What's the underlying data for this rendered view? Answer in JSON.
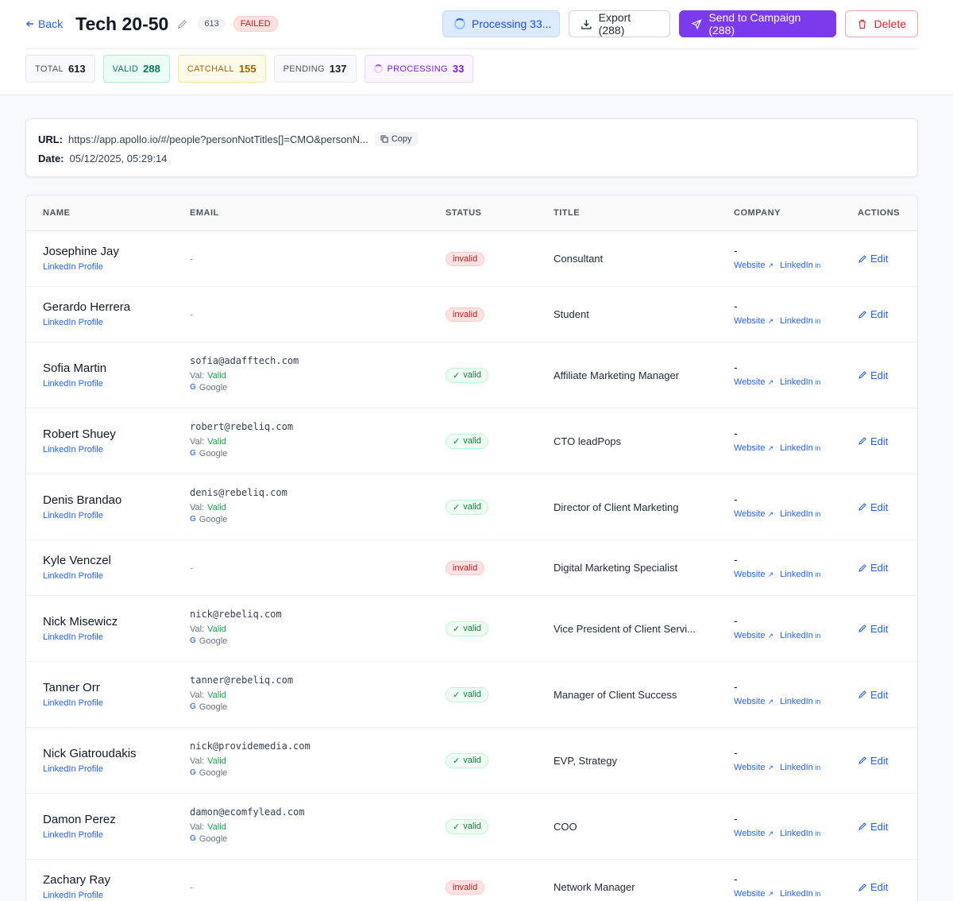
{
  "header": {
    "back_label": "Back",
    "title": "Tech 20-50",
    "count": "613",
    "status": "FAILED",
    "processing_label": "Processing 33...",
    "export_label": "Export (288)",
    "send_label": "Send to Campaign (288)",
    "delete_label": "Delete"
  },
  "stats": [
    {
      "label": "TOTAL",
      "value": "613"
    },
    {
      "label": "VALID",
      "value": "288"
    },
    {
      "label": "CATCHALL",
      "value": "155"
    },
    {
      "label": "PENDING",
      "value": "137"
    },
    {
      "label": "PROCESSING",
      "value": "33"
    }
  ],
  "info": {
    "url_label": "URL:",
    "url": "https://app.apollo.io/#/people?personNotTitles[]=CMO&personN...",
    "copy_label": "Copy",
    "date_label": "Date:",
    "date": "05/12/2025, 05:29:14"
  },
  "table": {
    "columns": [
      "NAME",
      "EMAIL",
      "STATUS",
      "TITLE",
      "COMPANY",
      "ACTIONS"
    ],
    "rows": [
      {
        "name": "Josephine Jay",
        "link": "LinkedIn Profile",
        "email": "-",
        "status": "invalid",
        "title": "Consultant",
        "company": "-",
        "website": "Website",
        "linkedin": "LinkedIn",
        "action": "Edit"
      },
      {
        "name": "Gerardo Herrera",
        "link": "LinkedIn Profile",
        "email": "-",
        "status": "invalid",
        "title": "Student",
        "company": "-",
        "website": "Website",
        "linkedin": "LinkedIn",
        "action": "Edit"
      },
      {
        "name": "Sofia Martin",
        "link": "LinkedIn Profile",
        "email": "sofia@adafftech.com",
        "val_label": "Val:",
        "val": "Valid",
        "provider": "Google",
        "status": "valid",
        "title": "Affiliate Marketing Manager",
        "company": "-",
        "website": "Website",
        "linkedin": "LinkedIn",
        "action": "Edit"
      },
      {
        "name": "Robert Shuey",
        "link": "LinkedIn Profile",
        "email": "robert@rebeliq.com",
        "val_label": "Val:",
        "val": "Valid",
        "provider": "Google",
        "status": "valid",
        "title": "CTO leadPops",
        "company": "-",
        "website": "Website",
        "linkedin": "LinkedIn",
        "action": "Edit"
      },
      {
        "name": "Denis Brandao",
        "link": "LinkedIn Profile",
        "email": "denis@rebeliq.com",
        "val_label": "Val:",
        "val": "Valid",
        "provider": "Google",
        "status": "valid",
        "title": "Director of Client Marketing",
        "company": "-",
        "website": "Website",
        "linkedin": "LinkedIn",
        "action": "Edit"
      },
      {
        "name": "Kyle Venczel",
        "link": "LinkedIn Profile",
        "email": "-",
        "status": "invalid",
        "title": "Digital Marketing Specialist",
        "company": "-",
        "website": "Website",
        "linkedin": "LinkedIn",
        "action": "Edit"
      },
      {
        "name": "Nick Misewicz",
        "link": "LinkedIn Profile",
        "email": "nick@rebeliq.com",
        "val_label": "Val:",
        "val": "Valid",
        "provider": "Google",
        "status": "valid",
        "title": "Vice President of Client Servi...",
        "company": "-",
        "website": "Website",
        "linkedin": "LinkedIn",
        "action": "Edit"
      },
      {
        "name": "Tanner Orr",
        "link": "LinkedIn Profile",
        "email": "tanner@rebeliq.com",
        "val_label": "Val:",
        "val": "Valid",
        "provider": "Google",
        "status": "valid",
        "title": "Manager of Client Success",
        "company": "-",
        "website": "Website",
        "linkedin": "LinkedIn",
        "action": "Edit"
      },
      {
        "name": "Nick Giatroudakis",
        "link": "LinkedIn Profile",
        "email": "nick@providemedia.com",
        "val_label": "Val:",
        "val": "Valid",
        "provider": "Google",
        "status": "valid",
        "title": "EVP, Strategy",
        "company": "-",
        "website": "Website",
        "linkedin": "LinkedIn",
        "action": "Edit"
      },
      {
        "name": "Damon Perez",
        "link": "LinkedIn Profile",
        "email": "damon@ecomfylead.com",
        "val_label": "Val:",
        "val": "Valid",
        "provider": "Google",
        "status": "valid",
        "title": "COO",
        "company": "-",
        "website": "Website",
        "linkedin": "LinkedIn",
        "action": "Edit"
      },
      {
        "name": "Zachary Ray",
        "link": "LinkedIn Profile",
        "email": "-",
        "status": "invalid",
        "title": "Network Manager",
        "company": "-",
        "website": "Website",
        "linkedin": "LinkedIn",
        "action": "Edit"
      }
    ]
  }
}
